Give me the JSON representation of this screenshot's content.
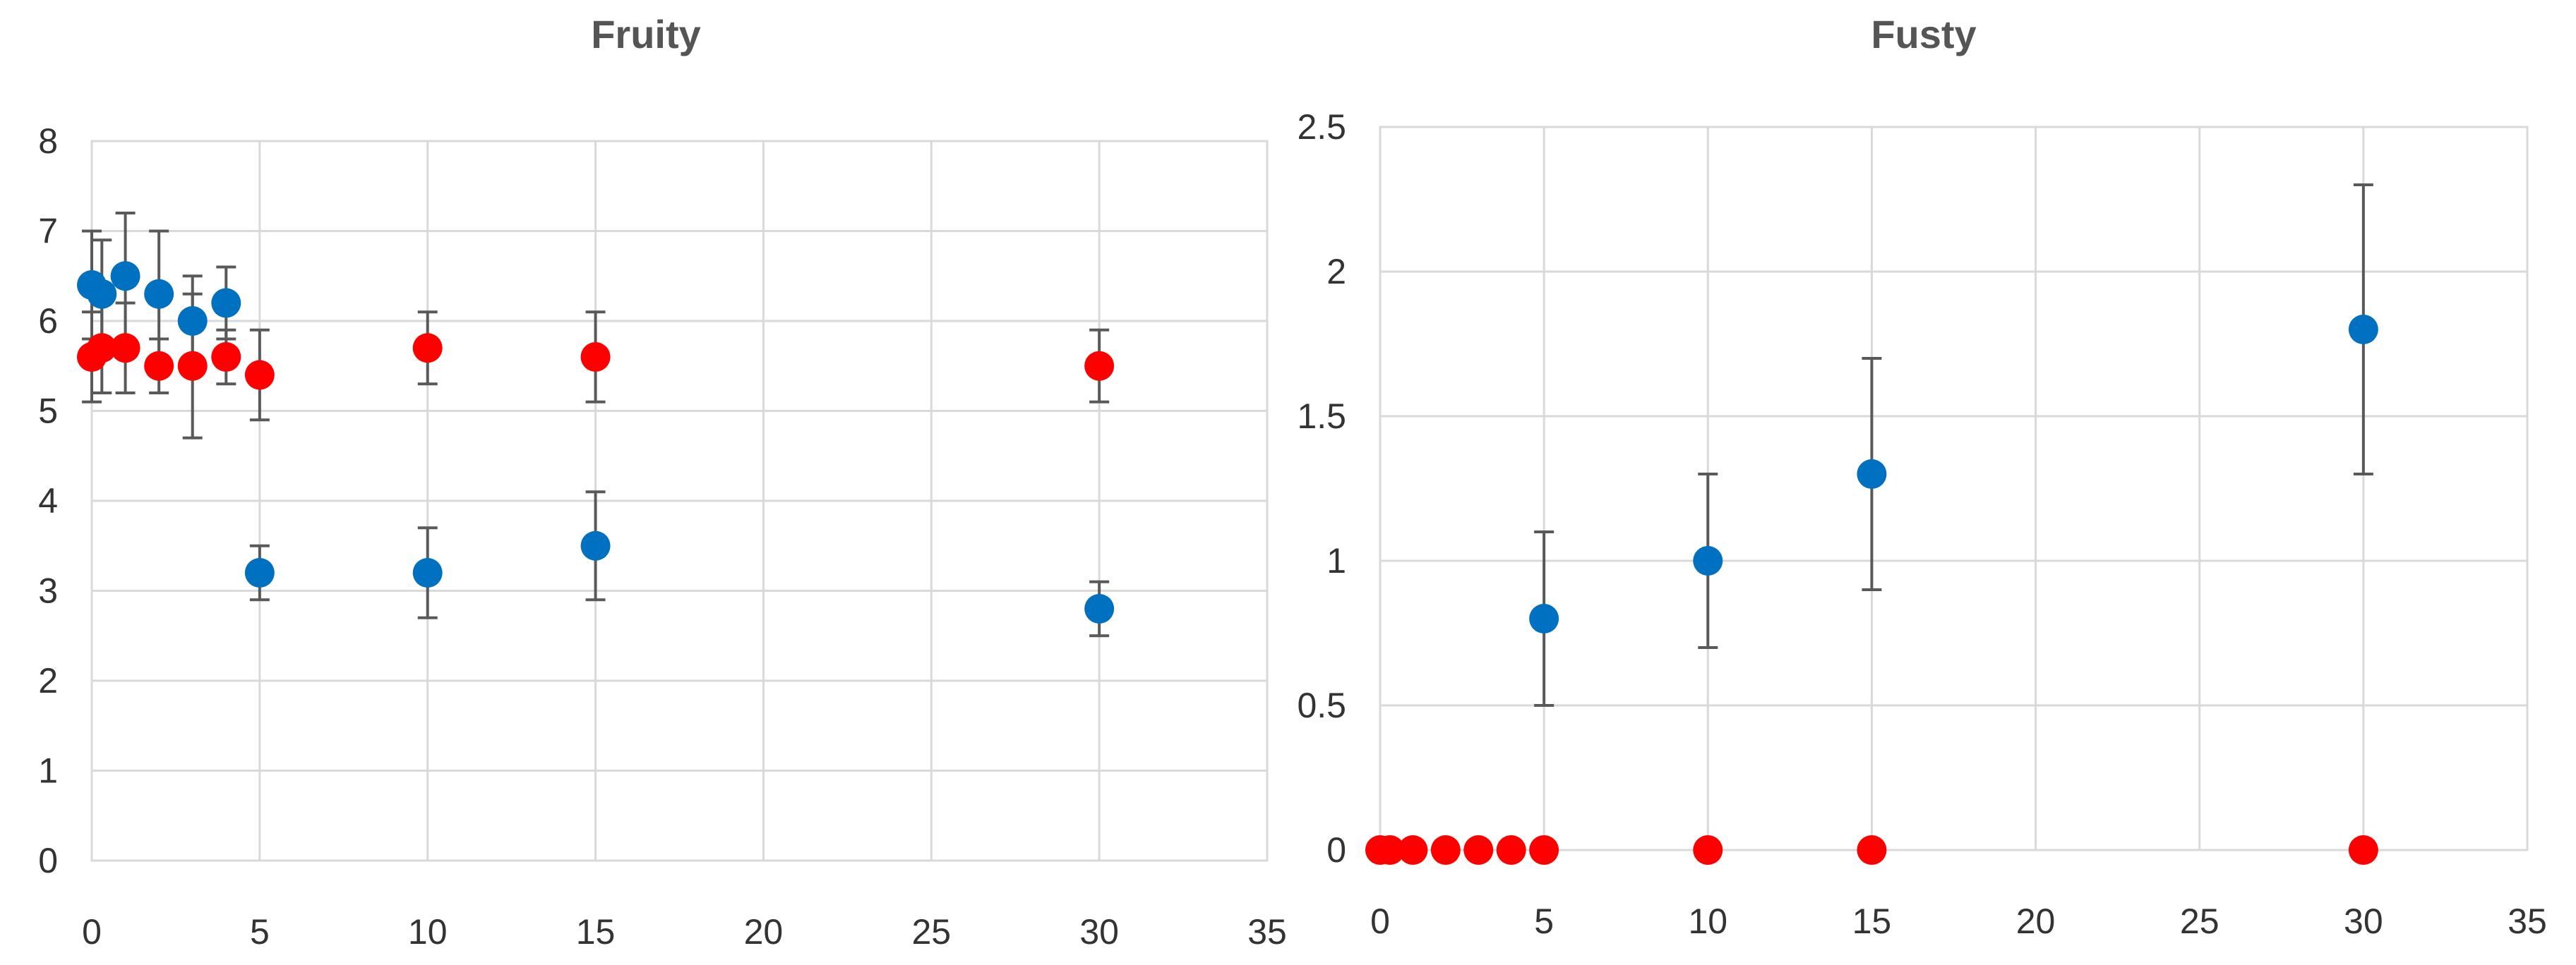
{
  "chart_data": [
    {
      "type": "scatter",
      "title": "Fruity",
      "xlabel": "",
      "ylabel": "",
      "xlim": [
        0,
        35
      ],
      "ylim": [
        0,
        8
      ],
      "xticks": [
        "0",
        "5",
        "10",
        "15",
        "20",
        "25",
        "30",
        "35"
      ],
      "yticks": [
        "0",
        "1",
        "2",
        "3",
        "4",
        "5",
        "6",
        "7",
        "8"
      ],
      "grid": true,
      "error_bars": true,
      "series": [
        {
          "color": "#0070c0",
          "points": [
            {
              "x": 0,
              "y": 6.4,
              "err_low": 5.8,
              "err_high": 7.0
            },
            {
              "x": 0.3,
              "y": 6.3,
              "err_low": 5.7,
              "err_high": 6.9
            },
            {
              "x": 1,
              "y": 6.5,
              "err_low": 5.8,
              "err_high": 7.2
            },
            {
              "x": 2,
              "y": 6.3,
              "err_low": 5.6,
              "err_high": 7.0
            },
            {
              "x": 3,
              "y": 6.0,
              "err_low": 5.5,
              "err_high": 6.5
            },
            {
              "x": 4,
              "y": 6.2,
              "err_low": 5.8,
              "err_high": 6.6
            },
            {
              "x": 5,
              "y": 3.2,
              "err_low": 2.9,
              "err_high": 3.5
            },
            {
              "x": 10,
              "y": 3.2,
              "err_low": 2.7,
              "err_high": 3.7
            },
            {
              "x": 15,
              "y": 3.5,
              "err_low": 2.9,
              "err_high": 4.1
            },
            {
              "x": 30,
              "y": 2.8,
              "err_low": 2.5,
              "err_high": 3.1
            }
          ]
        },
        {
          "color": "#ff0000",
          "points": [
            {
              "x": 0,
              "y": 5.6,
              "err_low": 5.1,
              "err_high": 6.1
            },
            {
              "x": 0.3,
              "y": 5.7,
              "err_low": 5.2,
              "err_high": 6.2
            },
            {
              "x": 1,
              "y": 5.7,
              "err_low": 5.2,
              "err_high": 6.2
            },
            {
              "x": 2,
              "y": 5.5,
              "err_low": 5.2,
              "err_high": 5.8
            },
            {
              "x": 3,
              "y": 5.5,
              "err_low": 4.7,
              "err_high": 6.3
            },
            {
              "x": 4,
              "y": 5.6,
              "err_low": 5.3,
              "err_high": 5.9
            },
            {
              "x": 5,
              "y": 5.4,
              "err_low": 4.9,
              "err_high": 5.9
            },
            {
              "x": 10,
              "y": 5.7,
              "err_low": 5.3,
              "err_high": 6.1
            },
            {
              "x": 15,
              "y": 5.6,
              "err_low": 5.1,
              "err_high": 6.1
            },
            {
              "x": 30,
              "y": 5.5,
              "err_low": 5.1,
              "err_high": 5.9
            }
          ]
        }
      ]
    },
    {
      "type": "scatter",
      "title": "Fusty",
      "xlabel": "",
      "ylabel": "",
      "xlim": [
        0,
        35
      ],
      "ylim": [
        0,
        2.5
      ],
      "xticks": [
        "0",
        "5",
        "10",
        "15",
        "20",
        "25",
        "30",
        "35"
      ],
      "yticks": [
        "0",
        "0.5",
        "1",
        "1.5",
        "2",
        "2.5"
      ],
      "grid": true,
      "error_bars": true,
      "series": [
        {
          "color": "#0070c0",
          "points": [
            {
              "x": 5,
              "y": 0.8,
              "err_low": 0.5,
              "err_high": 1.1
            },
            {
              "x": 10,
              "y": 1.0,
              "err_low": 0.7,
              "err_high": 1.3
            },
            {
              "x": 15,
              "y": 1.3,
              "err_low": 0.9,
              "err_high": 1.7
            },
            {
              "x": 30,
              "y": 1.8,
              "err_low": 1.3,
              "err_high": 2.3
            }
          ]
        },
        {
          "color": "#ff0000",
          "points": [
            {
              "x": 0,
              "y": 0
            },
            {
              "x": 0.3,
              "y": 0
            },
            {
              "x": 1,
              "y": 0
            },
            {
              "x": 2,
              "y": 0
            },
            {
              "x": 3,
              "y": 0
            },
            {
              "x": 4,
              "y": 0
            },
            {
              "x": 5,
              "y": 0
            },
            {
              "x": 10,
              "y": 0
            },
            {
              "x": 15,
              "y": 0
            },
            {
              "x": 30,
              "y": 0
            }
          ]
        }
      ]
    }
  ]
}
